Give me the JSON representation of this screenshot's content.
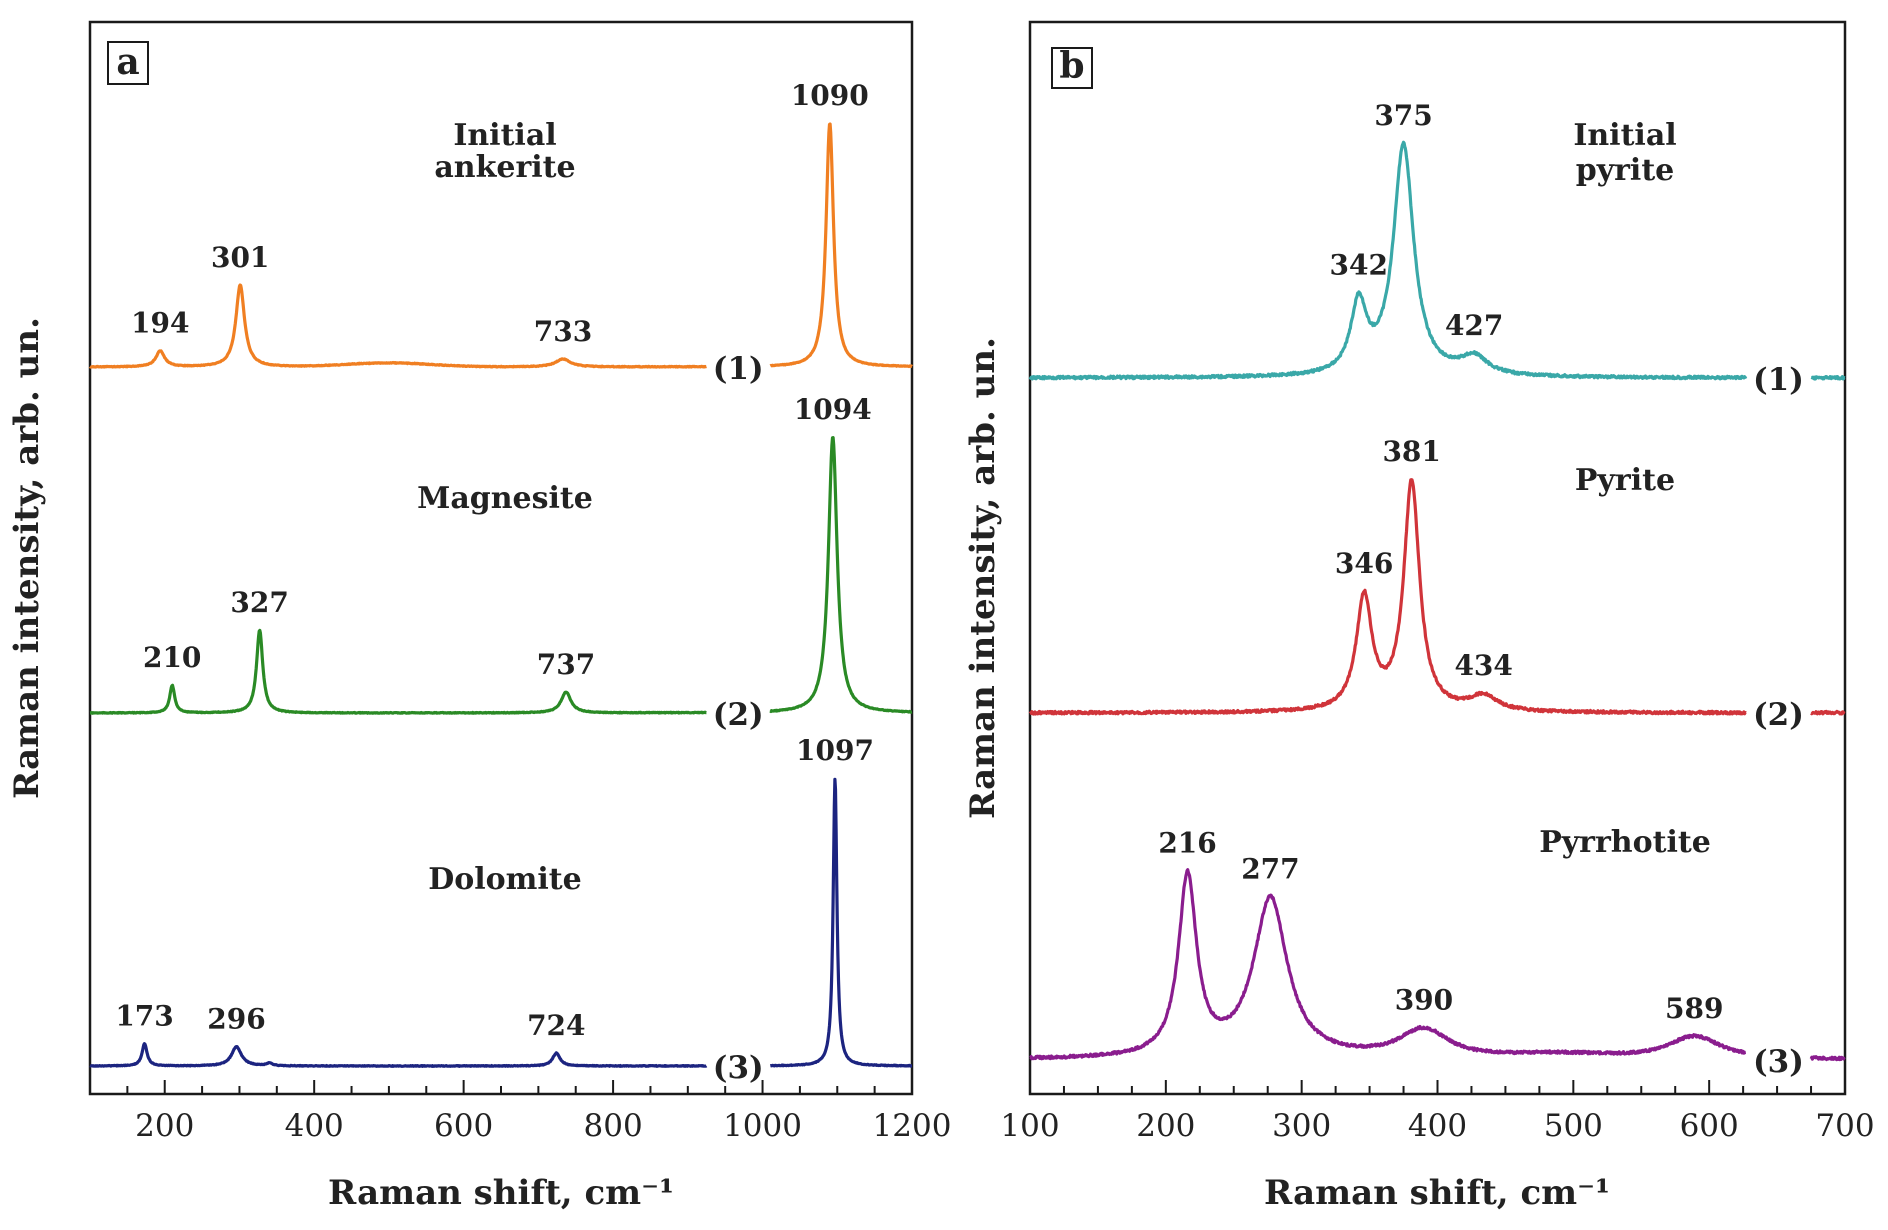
{
  "chart_data": [
    {
      "type": "line",
      "panel": "a",
      "xlabel": "Raman shift, cm⁻¹",
      "ylabel": "Raman intensity, arb. un.",
      "xlim": [
        100,
        1200
      ],
      "xticks": [
        200,
        400,
        600,
        800,
        1000,
        1200
      ],
      "grid": false,
      "yticks_shown": false,
      "series": [
        {
          "index_label": "(1)",
          "name_lines": [
            "Initial",
            "ankerite"
          ],
          "color": "#f07f22",
          "baseline": 0.0,
          "offset": 2.0,
          "axis_gap": [
            925,
            1010
          ],
          "peaks": [
            {
              "x": 194,
              "height": 0.06,
              "width": 7
            },
            {
              "x": 301,
              "height": 0.31,
              "width": 7
            },
            {
              "x": 733,
              "height": 0.03,
              "width": 12
            },
            {
              "x": 1090,
              "height": 0.92,
              "width": 6
            }
          ],
          "broad": [
            {
              "x": 500,
              "height": 0.015,
              "width": 80
            }
          ],
          "peak_labels": [
            {
              "text": "194",
              "x": 194
            },
            {
              "text": "301",
              "x": 301
            },
            {
              "text": "733",
              "x": 733
            },
            {
              "text": "1090",
              "x": 1090
            }
          ]
        },
        {
          "index_label": "(2)",
          "name_lines": [
            "Magnesite"
          ],
          "color": "#2a8a25",
          "baseline": 0.0,
          "offset": 1.0,
          "axis_gap": [
            925,
            1010
          ],
          "peaks": [
            {
              "x": 210,
              "height": 0.08,
              "width": 4
            },
            {
              "x": 327,
              "height": 0.24,
              "width": 5
            },
            {
              "x": 737,
              "height": 0.06,
              "width": 8
            },
            {
              "x": 1094,
              "height": 0.8,
              "width": 7
            }
          ],
          "broad": [],
          "peak_labels": [
            {
              "text": "210",
              "x": 210
            },
            {
              "text": "327",
              "x": 327
            },
            {
              "text": "737",
              "x": 737
            },
            {
              "text": "1094",
              "x": 1094
            }
          ]
        },
        {
          "index_label": "(3)",
          "name_lines": [
            "Dolomite"
          ],
          "color": "#1c2480",
          "baseline": 0.0,
          "offset": 0.0,
          "axis_gap": [
            925,
            1010
          ],
          "peaks": [
            {
              "x": 173,
              "height": 0.07,
              "width": 4
            },
            {
              "x": 296,
              "height": 0.06,
              "width": 8
            },
            {
              "x": 340,
              "height": 0.008,
              "width": 5
            },
            {
              "x": 724,
              "height": 0.04,
              "width": 6
            },
            {
              "x": 1097,
              "height": 0.9,
              "width": 3
            }
          ],
          "broad": [],
          "peak_labels": [
            {
              "text": "173",
              "x": 173
            },
            {
              "text": "296",
              "x": 296
            },
            {
              "text": "724",
              "x": 724
            },
            {
              "text": "1097",
              "x": 1097
            }
          ]
        }
      ]
    },
    {
      "type": "line",
      "panel": "b",
      "xlabel": "Raman shift, cm⁻¹",
      "ylabel": "Raman intensity, arb. un.",
      "xlim": [
        100,
        700
      ],
      "xticks": [
        100,
        200,
        300,
        400,
        500,
        600,
        700
      ],
      "grid": false,
      "yticks_shown": false,
      "series": [
        {
          "index_label": "(1)",
          "name_lines": [
            "Initial",
            "pyrite"
          ],
          "color": "#3aa8a8",
          "baseline": 0.0,
          "offset": 2.0,
          "axis_gap": [
            627,
            675
          ],
          "peaks": [
            {
              "x": 342,
              "height": 0.23,
              "width": 7
            },
            {
              "x": 375,
              "height": 0.77,
              "width": 9
            },
            {
              "x": 427,
              "height": 0.06,
              "width": 12
            }
          ],
          "broad": [],
          "peak_labels": [
            {
              "text": "342",
              "x": 342
            },
            {
              "text": "375",
              "x": 375
            },
            {
              "text": "427",
              "x": 427
            }
          ]
        },
        {
          "index_label": "(2)",
          "name_lines": [
            "Pyrite"
          ],
          "color": "#d0343a",
          "baseline": 0.0,
          "offset": 1.0,
          "axis_gap": [
            627,
            675
          ],
          "peaks": [
            {
              "x": 346,
              "height": 0.37,
              "width": 7
            },
            {
              "x": 381,
              "height": 0.75,
              "width": 7
            },
            {
              "x": 434,
              "height": 0.05,
              "width": 12
            }
          ],
          "broad": [],
          "peak_labels": [
            {
              "text": "346",
              "x": 346
            },
            {
              "text": "381",
              "x": 381
            },
            {
              "text": "434",
              "x": 434
            }
          ]
        },
        {
          "index_label": "(3)",
          "name_lines": [
            "Pyrrhotite"
          ],
          "color": "#8a1d8e",
          "baseline": 0.0,
          "offset": 0.0,
          "axis_gap": [
            627,
            675
          ],
          "peaks": [
            {
              "x": 216,
              "height": 0.62,
              "width": 8
            },
            {
              "x": 277,
              "height": 0.55,
              "width": 15
            },
            {
              "x": 390,
              "height": 0.1,
              "width": 22
            },
            {
              "x": 589,
              "height": 0.08,
              "width": 24
            }
          ],
          "broad": [
            {
              "x": 490,
              "height": 0.015,
              "width": 50
            }
          ],
          "peak_labels": [
            {
              "text": "216",
              "x": 216
            },
            {
              "text": "277",
              "x": 277
            },
            {
              "text": "390",
              "x": 390
            },
            {
              "text": "589",
              "x": 589
            }
          ]
        }
      ]
    }
  ]
}
